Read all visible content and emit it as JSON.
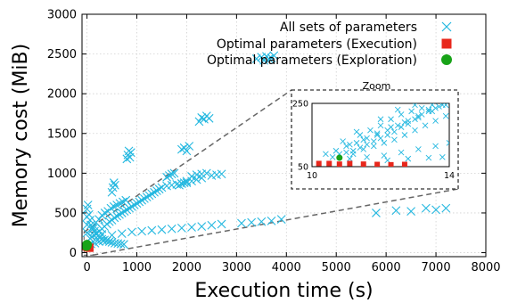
{
  "chart_data": {
    "type": "scatter",
    "xlabel": "Execution time (s)",
    "ylabel": "Memory cost (MiB)",
    "xlim": [
      -100,
      8000
    ],
    "ylim": [
      -50,
      3000
    ],
    "xticks": [
      0,
      1000,
      2000,
      3000,
      4000,
      5000,
      6000,
      7000,
      8000
    ],
    "yticks": [
      0,
      500,
      1000,
      1500,
      2000,
      2500,
      3000
    ],
    "grid": true,
    "legend_position": "top-right",
    "series": [
      {
        "name": "All sets of parameters",
        "marker": "x",
        "color": "#25b8e0",
        "points": [
          [
            20,
            600
          ],
          [
            40,
            480
          ],
          [
            60,
            410
          ],
          [
            80,
            350
          ],
          [
            120,
            300
          ],
          [
            150,
            270
          ],
          [
            180,
            240
          ],
          [
            220,
            210
          ],
          [
            260,
            190
          ],
          [
            300,
            170
          ],
          [
            350,
            160
          ],
          [
            400,
            150
          ],
          [
            450,
            140
          ],
          [
            500,
            130
          ],
          [
            560,
            120
          ],
          [
            620,
            115
          ],
          [
            680,
            110
          ],
          [
            740,
            105
          ],
          [
            60,
            180
          ],
          [
            100,
            200
          ],
          [
            140,
            220
          ],
          [
            200,
            240
          ],
          [
            250,
            270
          ],
          [
            300,
            300
          ],
          [
            350,
            330
          ],
          [
            400,
            360
          ],
          [
            450,
            390
          ],
          [
            500,
            410
          ],
          [
            550,
            440
          ],
          [
            600,
            460
          ],
          [
            650,
            480
          ],
          [
            700,
            500
          ],
          [
            750,
            520
          ],
          [
            800,
            540
          ],
          [
            850,
            560
          ],
          [
            900,
            580
          ],
          [
            950,
            600
          ],
          [
            1000,
            620
          ],
          [
            1050,
            640
          ],
          [
            1100,
            660
          ],
          [
            1150,
            680
          ],
          [
            1200,
            700
          ],
          [
            1250,
            720
          ],
          [
            1300,
            740
          ],
          [
            1350,
            760
          ],
          [
            1400,
            780
          ],
          [
            1450,
            800
          ],
          [
            1500,
            820
          ],
          [
            1600,
            840
          ],
          [
            1700,
            850
          ],
          [
            1800,
            860
          ],
          [
            1900,
            870
          ],
          [
            2000,
            880
          ],
          [
            2100,
            900
          ],
          [
            2200,
            920
          ],
          [
            2300,
            940
          ],
          [
            120,
            320
          ],
          [
            180,
            380
          ],
          [
            240,
            420
          ],
          [
            300,
            470
          ],
          [
            360,
            500
          ],
          [
            420,
            520
          ],
          [
            480,
            560
          ],
          [
            540,
            580
          ],
          [
            600,
            600
          ],
          [
            660,
            620
          ],
          [
            720,
            640
          ],
          [
            780,
            660
          ],
          [
            500,
            760
          ],
          [
            520,
            820
          ],
          [
            540,
            880
          ],
          [
            560,
            850
          ],
          [
            800,
            1180
          ],
          [
            820,
            1230
          ],
          [
            840,
            1280
          ],
          [
            860,
            1200
          ],
          [
            880,
            1260
          ],
          [
            1600,
            950
          ],
          [
            1650,
            970
          ],
          [
            1700,
            990
          ],
          [
            1750,
            1000
          ],
          [
            1900,
            1300
          ],
          [
            1950,
            1320
          ],
          [
            2000,
            1280
          ],
          [
            2050,
            1340
          ],
          [
            1850,
            850
          ],
          [
            1900,
            870
          ],
          [
            1950,
            880
          ],
          [
            2000,
            900
          ],
          [
            2250,
            1650
          ],
          [
            2300,
            1700
          ],
          [
            2350,
            1680
          ],
          [
            2400,
            1720
          ],
          [
            2450,
            1690
          ],
          [
            2100,
            960
          ],
          [
            2200,
            980
          ],
          [
            2300,
            990
          ],
          [
            2400,
            1000
          ],
          [
            2500,
            970
          ],
          [
            2600,
            980
          ],
          [
            2700,
            990
          ],
          [
            300,
            230
          ],
          [
            500,
            220
          ],
          [
            700,
            240
          ],
          [
            900,
            260
          ],
          [
            1100,
            270
          ],
          [
            1300,
            280
          ],
          [
            1500,
            290
          ],
          [
            1700,
            300
          ],
          [
            1900,
            310
          ],
          [
            2100,
            320
          ],
          [
            2300,
            330
          ],
          [
            2500,
            345
          ],
          [
            2700,
            360
          ],
          [
            3100,
            370
          ],
          [
            3300,
            380
          ],
          [
            3500,
            390
          ],
          [
            3700,
            400
          ],
          [
            3900,
            420
          ],
          [
            3400,
            2440
          ],
          [
            3500,
            2460
          ],
          [
            3550,
            2420
          ],
          [
            3600,
            2470
          ],
          [
            3650,
            2440
          ],
          [
            3700,
            2450
          ],
          [
            3750,
            2480
          ],
          [
            5800,
            500
          ],
          [
            6200,
            530
          ],
          [
            6500,
            520
          ],
          [
            6800,
            560
          ],
          [
            7000,
            540
          ],
          [
            7200,
            560
          ],
          [
            0,
            350
          ],
          [
            0,
            450
          ],
          [
            0,
            550
          ],
          [
            0,
            250
          ],
          [
            40,
            100
          ],
          [
            80,
            110
          ],
          [
            160,
            120
          ],
          [
            240,
            140
          ],
          [
            320,
            150
          ]
        ]
      },
      {
        "name": "Optimal parameters (Execution)",
        "marker": "square",
        "color": "#e8271c",
        "points": [
          [
            -10,
            80
          ],
          [
            10,
            70
          ],
          [
            30,
            65
          ],
          [
            50,
            60
          ]
        ]
      },
      {
        "name": "Optimal parameters (Exploration)",
        "marker": "circle",
        "color": "#18a318",
        "points": [
          [
            0,
            100
          ],
          [
            -10,
            85
          ]
        ]
      }
    ],
    "inset": {
      "title": "Zoom",
      "xlim": [
        10,
        14
      ],
      "ylim": [
        50,
        250
      ],
      "xtick_labels": [
        "10",
        "14"
      ],
      "ytick_labels": [
        "250",
        "50"
      ],
      "points_all": [
        [
          10.6,
          80
        ],
        [
          10.8,
          90
        ],
        [
          11.0,
          95
        ],
        [
          11.2,
          100
        ],
        [
          11.4,
          110
        ],
        [
          11.6,
          120
        ],
        [
          11.8,
          130
        ],
        [
          12.0,
          140
        ],
        [
          12.2,
          150
        ],
        [
          12.4,
          160
        ],
        [
          12.6,
          175
        ],
        [
          12.8,
          185
        ],
        [
          13.0,
          200
        ],
        [
          13.2,
          215
        ],
        [
          13.4,
          225
        ],
        [
          13.6,
          235
        ],
        [
          13.8,
          245
        ],
        [
          11.0,
          115
        ],
        [
          11.3,
          125
        ],
        [
          11.6,
          140
        ],
        [
          11.9,
          150
        ],
        [
          12.2,
          165
        ],
        [
          12.5,
          180
        ],
        [
          12.8,
          195
        ],
        [
          13.1,
          210
        ],
        [
          13.4,
          230
        ],
        [
          13.7,
          240
        ],
        [
          10.7,
          100
        ],
        [
          11.1,
          120
        ],
        [
          11.5,
          135
        ],
        [
          11.9,
          155
        ],
        [
          12.3,
          175
        ],
        [
          12.7,
          190
        ],
        [
          13.1,
          205
        ],
        [
          13.5,
          225
        ],
        [
          13.9,
          245
        ],
        [
          11.2,
          90
        ],
        [
          11.5,
          105
        ],
        [
          11.8,
          115
        ],
        [
          12.1,
          125
        ],
        [
          12.4,
          135
        ],
        [
          12.7,
          150
        ],
        [
          13.0,
          165
        ],
        [
          13.3,
          180
        ],
        [
          13.6,
          195
        ],
        [
          13.9,
          210
        ],
        [
          11.4,
          150
        ],
        [
          11.7,
          165
        ],
        [
          12.0,
          180
        ],
        [
          12.3,
          200
        ],
        [
          12.6,
          215
        ],
        [
          12.9,
          225
        ],
        [
          13.2,
          235
        ],
        [
          13.5,
          245
        ],
        [
          11.1,
          75
        ],
        [
          11.6,
          80
        ],
        [
          12.1,
          85
        ],
        [
          12.6,
          95
        ],
        [
          13.1,
          105
        ],
        [
          13.6,
          115
        ],
        [
          14.0,
          125
        ],
        [
          12.2,
          70
        ],
        [
          12.8,
          75
        ],
        [
          13.4,
          78
        ],
        [
          13.8,
          80
        ],
        [
          10.4,
          90
        ],
        [
          10.9,
          130
        ],
        [
          11.3,
          160
        ],
        [
          12.0,
          200
        ],
        [
          12.5,
          230
        ],
        [
          13.0,
          245
        ]
      ],
      "points_exec": [
        [
          10.2,
          60
        ],
        [
          10.5,
          60
        ],
        [
          10.8,
          58
        ],
        [
          11.1,
          60
        ],
        [
          11.5,
          58
        ],
        [
          11.9,
          57
        ],
        [
          12.3,
          56
        ],
        [
          12.7,
          57
        ]
      ],
      "points_expl": [
        [
          10.8,
          78
        ]
      ]
    }
  }
}
